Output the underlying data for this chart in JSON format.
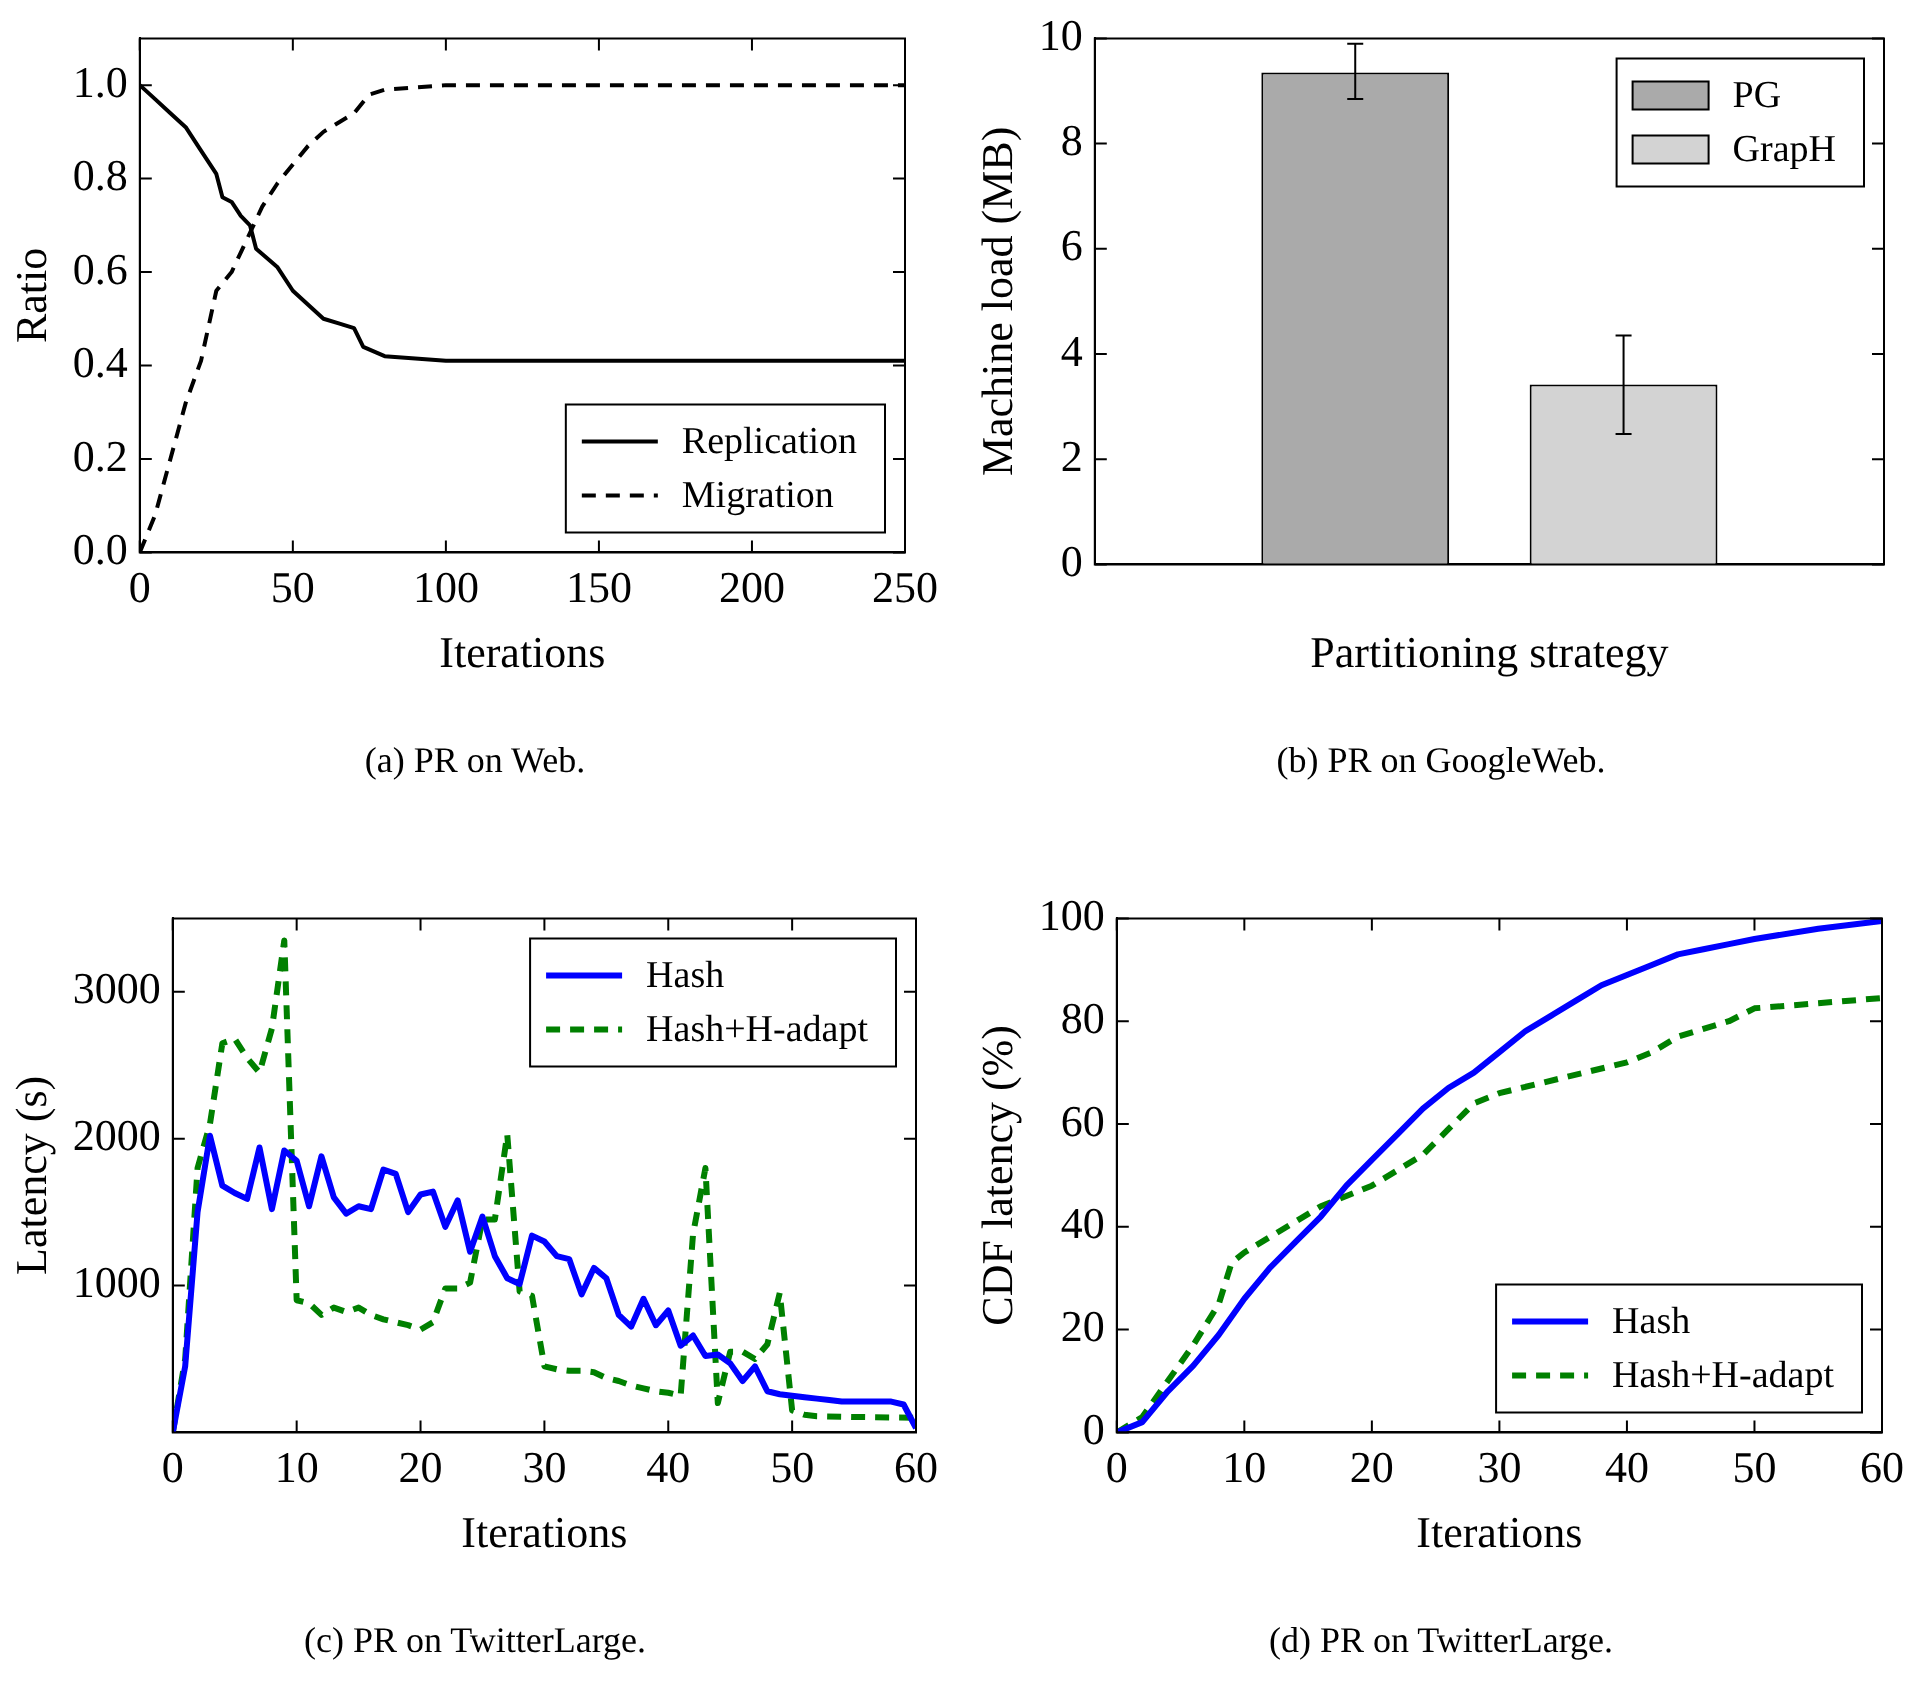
{
  "chart_data": [
    {
      "type": "line",
      "xlabel": "Iterations",
      "ylabel": "Ratio",
      "xlim": [
        0,
        250
      ],
      "xticks": [
        0,
        50,
        100,
        150,
        200,
        250
      ],
      "ylim": [
        0,
        1.1
      ],
      "yticks": [
        {
          "value": 0,
          "label": "0.0"
        },
        {
          "value": 0.2,
          "label": "0.2"
        },
        {
          "value": 0.4,
          "label": "0.4"
        },
        {
          "value": 0.6,
          "label": "0.6"
        },
        {
          "value": 0.8,
          "label": "0.8"
        },
        {
          "value": 1,
          "label": "1.0"
        }
      ],
      "legend": "bottom right",
      "annotations": [
        "(a) PR on Web."
      ],
      "series": [
        {
          "name": "Replication",
          "color": "#000000",
          "line_style": "solid",
          "x": [
            0,
            5,
            10,
            15,
            20,
            25,
            27,
            30,
            33,
            36,
            38,
            45,
            50,
            55,
            60,
            65,
            70,
            73,
            80,
            100,
            250
          ],
          "values": [
            1.0,
            0.97,
            0.94,
            0.91,
            0.86,
            0.81,
            0.76,
            0.75,
            0.72,
            0.7,
            0.65,
            0.61,
            0.56,
            0.53,
            0.5,
            0.49,
            0.48,
            0.44,
            0.42,
            0.41,
            0.41
          ]
        },
        {
          "name": "Migration",
          "color": "#000000",
          "line_style": "dashed",
          "x": [
            0,
            5,
            10,
            15,
            20,
            25,
            30,
            35,
            40,
            45,
            50,
            55,
            60,
            65,
            70,
            75,
            80,
            100,
            250
          ],
          "values": [
            0,
            0.08,
            0.2,
            0.32,
            0.41,
            0.56,
            0.6,
            0.67,
            0.74,
            0.79,
            0.83,
            0.87,
            0.9,
            0.92,
            0.94,
            0.98,
            0.99,
            1.0,
            1.0
          ]
        }
      ]
    },
    {
      "type": "bar",
      "xlabel": "Partitioning strategy",
      "ylabel": "Machine load (MB)",
      "categories": [
        null
      ],
      "ylim": [
        0,
        10
      ],
      "yticks": [
        0,
        2,
        4,
        6,
        8,
        10
      ],
      "legend": "top right",
      "annotations": [
        "(b) PR on GoogleWeb."
      ],
      "series": [
        {
          "name": "PG",
          "color": "#aaaaaa",
          "values": [
            9.35
          ],
          "errors": [
            [
              8.85,
              9.9
            ]
          ]
        },
        {
          "name": "GrapH",
          "color": "#d3d3d3",
          "values": [
            3.42
          ],
          "errors": [
            [
              2.48,
              4.35
            ]
          ]
        }
      ]
    },
    {
      "type": "line",
      "xlabel": "Iterations",
      "ylabel": "Latency (s)",
      "xlim": [
        0,
        60
      ],
      "xticks": [
        0,
        10,
        20,
        30,
        40,
        50,
        60
      ],
      "ylim": [
        0,
        3500
      ],
      "yticks": [
        1000,
        2000,
        3000
      ],
      "legend": "top right",
      "annotations": [
        "(c) PR on TwitterLarge."
      ],
      "series": [
        {
          "name": "Hash",
          "color": "#0000ff",
          "line_style": "solid",
          "x": [
            0,
            1,
            2,
            3,
            4,
            5,
            6,
            7,
            8,
            9,
            10,
            11,
            12,
            13,
            14,
            15,
            16,
            17,
            18,
            19,
            20,
            21,
            22,
            23,
            24,
            25,
            26,
            27,
            28,
            29,
            30,
            31,
            32,
            33,
            34,
            35,
            36,
            37,
            38,
            39,
            40,
            41,
            42,
            43,
            44,
            45,
            46,
            47,
            48,
            49,
            50,
            51,
            52,
            53,
            54,
            55,
            56,
            57,
            58,
            59,
            60
          ],
          "values": [
            0,
            450,
            1500,
            2020,
            1680,
            1630,
            1590,
            1940,
            1520,
            1920,
            1850,
            1540,
            1880,
            1600,
            1490,
            1540,
            1520,
            1790,
            1760,
            1500,
            1620,
            1640,
            1400,
            1580,
            1230,
            1470,
            1200,
            1050,
            1010,
            1340,
            1300,
            1200,
            1180,
            940,
            1120,
            1050,
            800,
            720,
            910,
            730,
            830,
            590,
            660,
            520,
            530,
            470,
            350,
            450,
            280,
            260,
            250,
            240,
            230,
            220,
            210,
            210,
            210,
            210,
            210,
            190,
            30
          ]
        },
        {
          "name": "Hash+H-adapt",
          "color": "#008000",
          "line_style": "dashed",
          "x": [
            0,
            1,
            2,
            3,
            4,
            5,
            6,
            7,
            8,
            9,
            10,
            11,
            12,
            13,
            14,
            15,
            16,
            17,
            18,
            19,
            20,
            21,
            22,
            23,
            24,
            25,
            26,
            27,
            28,
            29,
            30,
            31,
            32,
            33,
            34,
            35,
            36,
            37,
            38,
            39,
            40,
            41,
            42,
            43,
            44,
            45,
            46,
            47,
            48,
            49,
            50,
            51,
            52,
            55,
            60
          ],
          "values": [
            0,
            500,
            1800,
            2100,
            2650,
            2680,
            2550,
            2450,
            2750,
            3350,
            900,
            880,
            800,
            850,
            820,
            850,
            800,
            770,
            750,
            730,
            700,
            750,
            980,
            980,
            1020,
            1450,
            1450,
            2030,
            960,
            930,
            450,
            430,
            420,
            420,
            410,
            370,
            350,
            320,
            300,
            280,
            270,
            250,
            1350,
            1800,
            200,
            550,
            550,
            500,
            600,
            950,
            150,
            120,
            110,
            105,
            100
          ]
        }
      ]
    },
    {
      "type": "line",
      "xlabel": "Iterations",
      "ylabel": "CDF latency (%)",
      "xlim": [
        0,
        60
      ],
      "xticks": [
        0,
        10,
        20,
        30,
        40,
        50,
        60
      ],
      "ylim": [
        0,
        100
      ],
      "yticks": [
        0,
        20,
        40,
        60,
        80,
        100
      ],
      "legend": "bottom right",
      "annotations": [
        "(d) PR on TwitterLarge."
      ],
      "series": [
        {
          "name": "Hash",
          "color": "#0000ff",
          "line_style": "solid",
          "x": [
            0,
            2,
            4,
            6,
            8,
            10,
            12,
            14,
            16,
            18,
            20,
            22,
            24,
            26,
            28,
            30,
            32,
            34,
            36,
            38,
            40,
            42,
            44,
            46,
            48,
            50,
            55,
            60
          ],
          "values": [
            0,
            2,
            8,
            13,
            19,
            26,
            32,
            37,
            42,
            48,
            53,
            58,
            63,
            67,
            70,
            74,
            78,
            81,
            84,
            87,
            89,
            91,
            93,
            94,
            95,
            96,
            98,
            99.5
          ]
        },
        {
          "name": "Hash+H-adapt",
          "color": "#008000",
          "line_style": "dashed",
          "x": [
            0,
            2,
            4,
            6,
            8,
            9,
            10,
            12,
            14,
            16,
            18,
            20,
            22,
            24,
            26,
            28,
            30,
            35,
            40,
            42,
            44,
            48,
            50,
            55,
            60
          ],
          "values": [
            0,
            3,
            10,
            17,
            25,
            33,
            35,
            38,
            41,
            44,
            46,
            48,
            51,
            54,
            59,
            64,
            66,
            69,
            72,
            74,
            77,
            80,
            82.5,
            83.5,
            84.5
          ]
        }
      ]
    }
  ]
}
